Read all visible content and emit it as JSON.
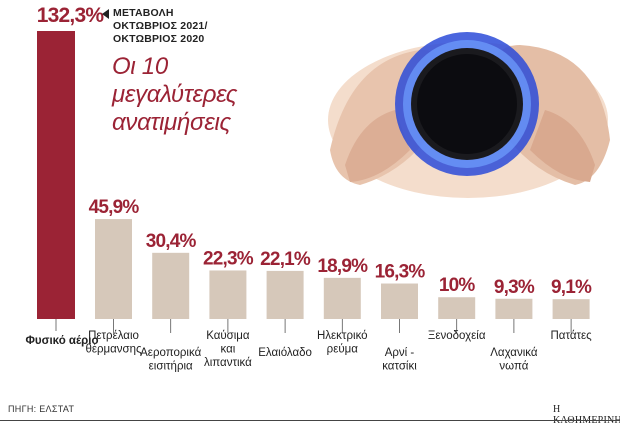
{
  "subtitle": {
    "line1": "ΜΕΤΑΒΟΛΗ",
    "line2": "ΟΚΤΩΒΡΙΟΣ 2021/",
    "line3": "ΟΚΤΩΒΡΙΟΣ 2020"
  },
  "headline": {
    "line1": "Οι 10",
    "line2": "μεγαλύτερες",
    "line3": "ανατιμήσεις"
  },
  "source": "ΠΗΓΗ: ΕΛΣΤΑΤ",
  "brand": "Η ΚΑΘΗΜΕΡΙΝΗ",
  "colors": {
    "highlight_bar": "#9b2335",
    "bar": "#d6c8ba",
    "label_highlight": "#9b2335",
    "accent_text": "#9b2335"
  },
  "chart_data": {
    "type": "bar",
    "unit": "%",
    "categories": [
      [
        "Φυσικό αέριο"
      ],
      [
        "Πετρέλαιο",
        "θέρμανσης"
      ],
      [
        "Αεροπορικά",
        "εισιτήρια"
      ],
      [
        "Καύσιμα",
        "και",
        "λιπαντικά"
      ],
      [
        "Ελαιόλαδο"
      ],
      [
        "Ηλεκτρικό",
        "ρεύμα"
      ],
      [
        "Αρνί -",
        "κατσίκι"
      ],
      [
        "Ξενοδοχεία"
      ],
      [
        "Λαχανικά",
        "νωπά"
      ],
      [
        "Πατάτες"
      ]
    ],
    "values": [
      132.3,
      45.9,
      30.4,
      22.3,
      22.1,
      18.9,
      16.3,
      10,
      9.3,
      9.1
    ],
    "value_labels": [
      "132,3%",
      "45,9%",
      "30,4%",
      "22,3%",
      "22,1%",
      "18,9%",
      "16,3%",
      "10%",
      "9,3%",
      "9,1%"
    ],
    "highlight_index": 0,
    "ylim": [
      0,
      132.3
    ]
  }
}
